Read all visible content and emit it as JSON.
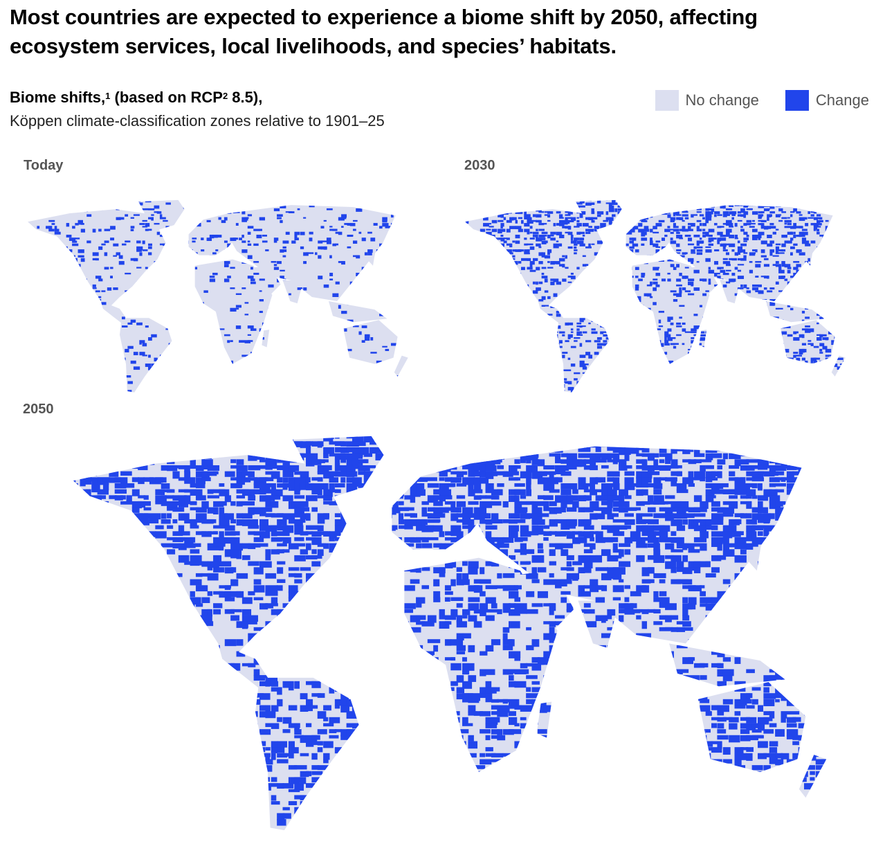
{
  "title": "Most countries are expected to experience a biome shift by 2050, affecting ecosystem services, local livelihoods, and species’ habitats.",
  "subtitle": {
    "text_a": "Biome shifts,",
    "sup_a": "1",
    "text_b": " (based on RCP",
    "sup_b": "2",
    "text_c": " 8.5),",
    "line2": "Köppen climate-classification zones relative to 1901–25"
  },
  "legend": {
    "items": [
      {
        "label": "No change",
        "color": "#dcdff0"
      },
      {
        "label": "Change",
        "color": "#2145eb"
      }
    ]
  },
  "maps": {
    "today": {
      "label": "Today",
      "change_intensity": 0.15
    },
    "y2030": {
      "label": "2030",
      "change_intensity": 0.35
    },
    "y2050": {
      "label": "2050",
      "change_intensity": 0.7
    }
  },
  "colors": {
    "no_change": "#dcdff0",
    "change": "#2145eb"
  }
}
